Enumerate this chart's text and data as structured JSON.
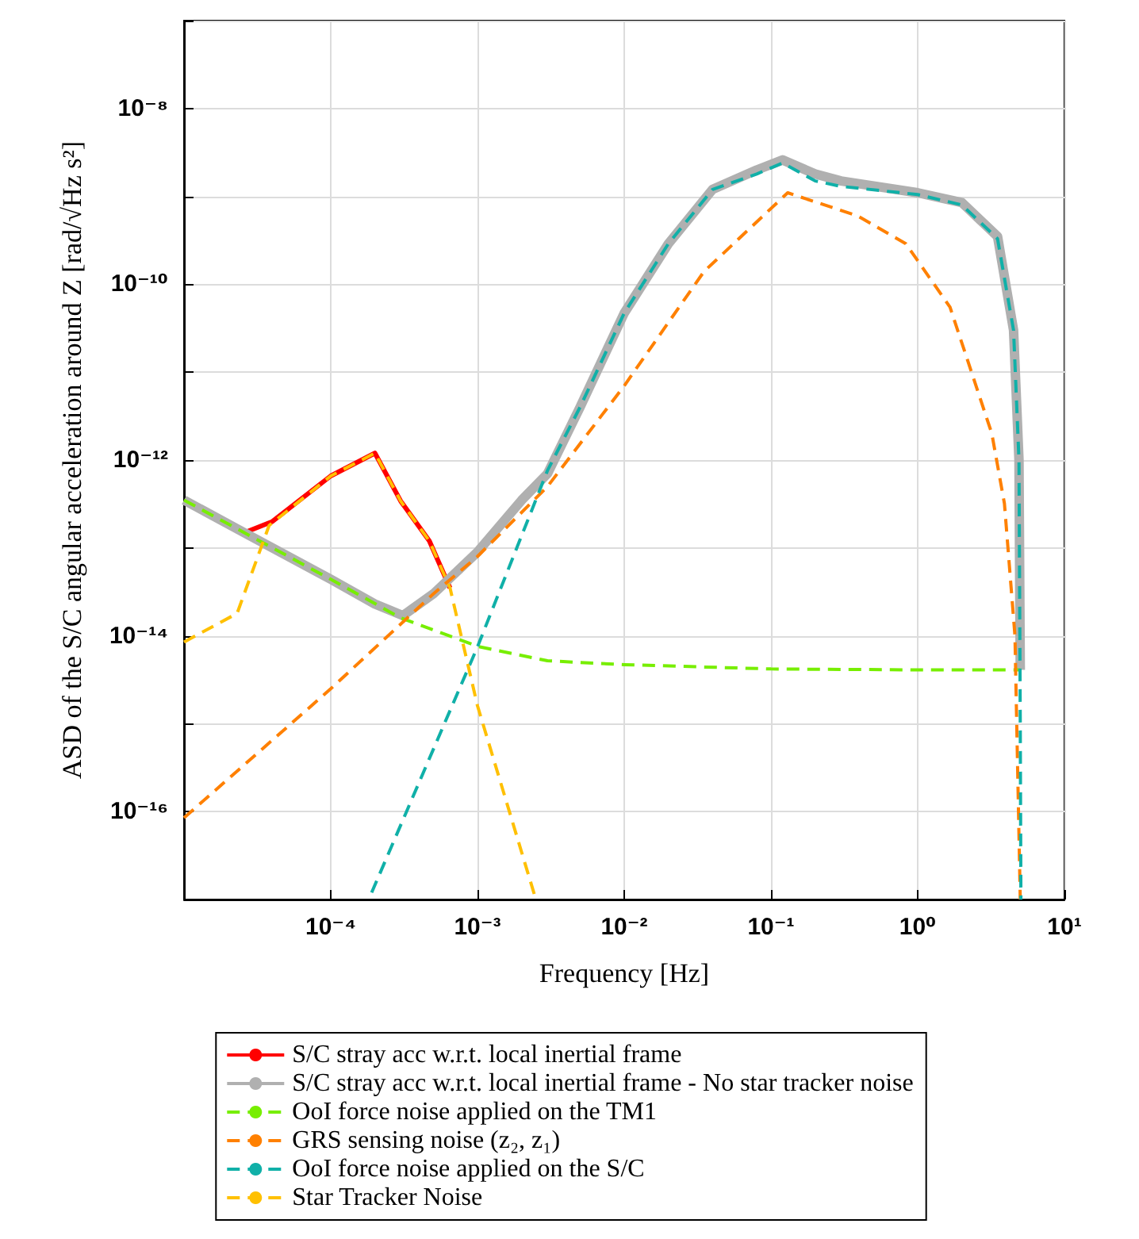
{
  "chart_data": {
    "type": "line",
    "xlabel": "Frequency [Hz]",
    "ylabel": "ASD of the S/C angular acceleration around Z [rad/√Hz s²]",
    "log": "xy",
    "grid": true,
    "legend": "bottom",
    "xlim": [
      1e-05,
      10
    ],
    "ylim": [
      1e-17,
      1e-07
    ],
    "xticks": [
      {
        "value": 1e-05,
        "label": null
      },
      {
        "value": 0.0001,
        "label": "10⁻⁴"
      },
      {
        "value": 0.001,
        "label": "10⁻³"
      },
      {
        "value": 0.01,
        "label": "10⁻²"
      },
      {
        "value": 0.1,
        "label": "10⁻¹"
      },
      {
        "value": 1,
        "label": "10⁰"
      },
      {
        "value": 10,
        "label": "10¹"
      }
    ],
    "yticks": [
      {
        "value": 1e-17,
        "label": null
      },
      {
        "value": 1e-16,
        "label": "10⁻¹⁶"
      },
      {
        "value": 1e-15,
        "label": null
      },
      {
        "value": 1e-14,
        "label": "10⁻¹⁴"
      },
      {
        "value": 1e-13,
        "label": null
      },
      {
        "value": 1e-12,
        "label": "10⁻¹²"
      },
      {
        "value": 1e-11,
        "label": null
      },
      {
        "value": 1e-10,
        "label": "10⁻¹⁰"
      },
      {
        "value": 1e-09,
        "label": null
      },
      {
        "value": 1e-08,
        "label": "10⁻⁸"
      },
      {
        "value": 1e-07,
        "label": null
      }
    ],
    "series": [
      {
        "name": "S/C stray acc w.r.t. local inertial frame",
        "color": "#ff0000",
        "line_style": "solid",
        "x": [
          2.6e-05,
          4e-05,
          0.0001,
          0.0002,
          0.0003,
          0.00047,
          0.00065
        ],
        "values": [
          1.5e-13,
          2e-13,
          6.6e-13,
          1.2e-12,
          3.4e-13,
          1.2e-13,
          3.5e-14
        ]
      },
      {
        "name": "S/C stray acc w.r.t. local inertial frame - No star tracker noise",
        "color": "#b0b0b0",
        "line_style": "solid",
        "x": [
          1e-05,
          3e-05,
          0.0001,
          0.0002,
          0.00031,
          0.0005,
          0.001,
          0.002,
          0.003,
          0.005,
          0.01,
          0.02,
          0.04,
          0.08,
          0.12,
          0.2,
          0.3,
          1,
          2,
          3.5,
          4.5,
          4.9,
          5
        ],
        "values": [
          3.5e-13,
          1.3e-13,
          4.4e-14,
          2.3e-14,
          1.7e-14,
          3e-14,
          9e-14,
          3.5e-13,
          7e-13,
          4e-12,
          4.7e-11,
          2.9e-10,
          1.2e-09,
          2e-09,
          2.6e-09,
          1.8e-09,
          1.5e-09,
          1.1e-09,
          8.5e-10,
          3.5e-10,
          3e-11,
          1e-12,
          4.1e-15
        ]
      },
      {
        "name": "OoI force noise applied on the TM1",
        "color": "#77ee00",
        "line_style": "dashed",
        "x": [
          1e-05,
          0.0001,
          0.0003,
          0.001,
          0.003,
          0.01,
          0.1,
          1,
          5
        ],
        "values": [
          3.5e-13,
          4.4e-14,
          1.6e-14,
          7.6e-15,
          5.2e-15,
          4.7e-15,
          4.2e-15,
          4.1e-15,
          4.1e-15
        ]
      },
      {
        "name": "GRS sensing noise (z₂, z₁)",
        "color": "#ff8000",
        "line_style": "dashed",
        "x": [
          1e-05,
          0.0001,
          0.0005,
          0.001,
          0.003,
          0.01,
          0.035,
          0.13,
          0.39,
          0.83,
          1.66,
          3.2,
          3.9,
          4.6,
          5
        ],
        "values": [
          8.5e-17,
          2.5e-15,
          3e-14,
          8e-14,
          5e-13,
          7e-12,
          1.4e-10,
          1.1e-09,
          6e-10,
          2.9e-10,
          5.5e-11,
          2e-12,
          3.2e-13,
          1e-14,
          1e-17
        ]
      },
      {
        "name": "OoI force noise applied on the S/C",
        "color": "#10b0a8",
        "line_style": "dashed",
        "x": [
          0.00019,
          0.001,
          0.003,
          0.005,
          0.01,
          0.02,
          0.04,
          0.08,
          0.12,
          0.2,
          0.3,
          1,
          2,
          3.5,
          4.5,
          4.9,
          5,
          5.05
        ],
        "values": [
          1.2e-17,
          7.5e-15,
          7.6e-13,
          4e-12,
          4.7e-11,
          2.9e-10,
          1.2e-09,
          1.8e-09,
          2.4e-09,
          1.5e-09,
          1.3e-09,
          1.05e-09,
          8e-10,
          3.3e-10,
          3e-11,
          1e-12,
          1e-15,
          1e-17
        ]
      },
      {
        "name": "Star Tracker Noise",
        "color": "#ffc000",
        "line_style": "dashed",
        "x": [
          1e-05,
          2.3e-05,
          3.8e-05,
          0.0001,
          0.0002,
          0.0003,
          0.00047,
          0.00065,
          0.001,
          0.0025
        ],
        "values": [
          8.5e-15,
          1.8e-14,
          1.8e-13,
          6.6e-13,
          1.2e-12,
          3.4e-13,
          1.2e-13,
          3.5e-14,
          1.6e-15,
          1e-17
        ]
      }
    ]
  }
}
